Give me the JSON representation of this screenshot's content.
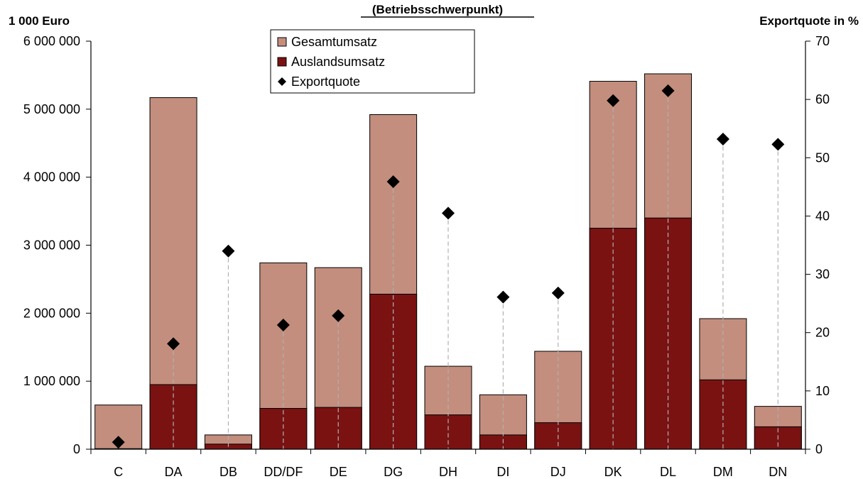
{
  "chart_data": {
    "type": "bar",
    "title": "(Betriebsschwerpunkt)",
    "ylabel": "1 000 Euro",
    "y2label": "Exportquote in %",
    "categories": [
      "C",
      "DA",
      "DB",
      "DD/DF",
      "DE",
      "DG",
      "DH",
      "DI",
      "DJ",
      "DK",
      "DL",
      "DM",
      "DN"
    ],
    "series": [
      {
        "name": "Gesamtumsatz",
        "kind": "bar",
        "axis": "left",
        "color": "#c38e7e",
        "values": [
          650000,
          5170000,
          210000,
          2740000,
          2670000,
          4920000,
          1220000,
          800000,
          1440000,
          5410000,
          5520000,
          1920000,
          630000
        ]
      },
      {
        "name": "Auslandsumsatz",
        "kind": "bar",
        "axis": "left",
        "color": "#7a1212",
        "values": [
          8000,
          950000,
          75000,
          600000,
          615000,
          2280000,
          505000,
          210000,
          390000,
          3250000,
          3400000,
          1020000,
          330000
        ]
      },
      {
        "name": "Exportquote",
        "kind": "marker",
        "axis": "right",
        "color": "#000000",
        "values": [
          1.2,
          18.1,
          34.0,
          21.3,
          22.9,
          45.9,
          40.5,
          26.1,
          26.8,
          59.8,
          61.5,
          53.2,
          52.3
        ]
      }
    ],
    "ylim": [
      0,
      6000000
    ],
    "y2lim": [
      0,
      70
    ],
    "yticks": [
      "0",
      "1 000 000",
      "2 000 000",
      "3 000 000",
      "4 000 000",
      "5 000 000",
      "6 000 000"
    ],
    "y2ticks": [
      "0",
      "10",
      "20",
      "30",
      "40",
      "50",
      "60",
      "70"
    ],
    "grid": false,
    "legend_position": "top-center"
  }
}
